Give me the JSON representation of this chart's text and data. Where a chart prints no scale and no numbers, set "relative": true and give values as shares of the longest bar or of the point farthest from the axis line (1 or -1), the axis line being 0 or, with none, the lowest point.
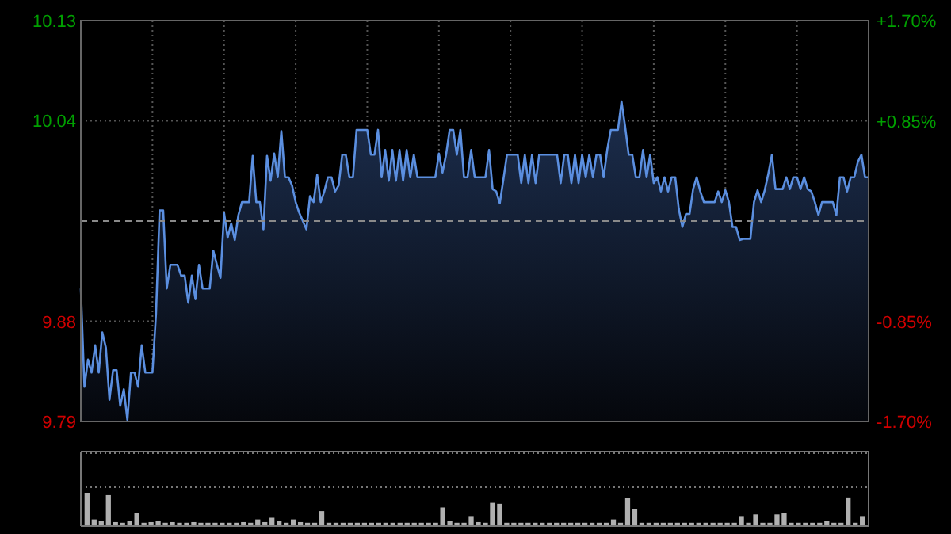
{
  "chart_data": [
    {
      "type": "area",
      "categories": [
        null,
        null,
        null,
        null,
        null,
        null,
        null,
        null,
        null,
        null,
        null,
        null,
        null,
        null,
        null,
        null,
        null,
        null,
        null,
        null,
        null,
        null,
        null,
        null,
        null,
        null,
        null,
        null,
        null,
        null,
        null,
        null,
        null,
        null,
        null,
        null,
        null,
        null,
        null,
        null,
        null,
        null,
        null,
        null,
        null,
        null,
        null,
        null,
        null,
        null,
        null,
        null,
        null,
        null,
        null,
        null,
        null,
        null,
        null,
        null,
        null,
        null,
        null,
        null,
        null,
        null,
        null,
        null,
        null,
        null,
        null,
        null,
        null,
        null,
        null,
        null,
        null,
        null,
        null,
        null,
        null,
        null,
        null,
        null,
        null,
        null,
        null,
        null,
        null,
        null,
        null,
        null,
        null,
        null,
        null,
        null,
        null,
        null,
        null,
        null,
        null,
        null,
        null,
        null,
        null,
        null,
        null,
        null,
        null,
        null,
        null,
        null,
        null,
        null,
        null,
        null,
        null,
        null,
        null,
        null,
        null,
        null,
        null,
        null,
        null,
        null,
        null,
        null,
        null,
        null,
        null,
        null,
        null,
        null,
        null,
        null,
        null,
        null,
        null,
        null,
        null,
        null,
        null,
        null,
        null,
        null,
        null,
        null,
        null,
        null,
        null,
        null,
        null,
        null,
        null,
        null,
        null,
        null,
        null,
        null,
        null,
        null,
        null,
        null,
        null,
        null,
        null,
        null,
        null,
        null,
        null,
        null,
        null,
        null,
        null,
        null,
        null,
        null,
        null,
        null,
        null,
        null,
        null,
        null,
        null,
        null,
        null,
        null,
        null,
        null,
        null,
        null,
        null,
        null,
        null,
        null,
        null,
        null,
        null,
        null,
        null,
        null,
        null,
        null,
        null,
        null,
        null,
        null,
        null,
        null,
        null,
        null,
        null,
        null,
        null,
        null,
        null,
        null,
        null,
        null,
        null
      ],
      "series": [
        {
          "color": "#5b8fe0",
          "values": [
            9.903,
            9.82,
            9.843,
            9.832,
            9.855,
            9.832,
            9.866,
            9.853,
            9.809,
            9.834,
            9.834,
            9.804,
            9.818,
            9.792,
            9.832,
            9.832,
            9.82,
            9.855,
            9.832,
            9.832,
            9.832,
            9.882,
            9.969,
            9.969,
            9.903,
            9.923,
            9.923,
            9.923,
            9.914,
            9.914,
            9.891,
            9.914,
            9.894,
            9.923,
            9.903,
            9.903,
            9.903,
            9.935,
            9.923,
            9.912,
            9.967,
            9.946,
            9.958,
            9.944,
            9.965,
            9.976,
            9.976,
            9.976,
            10.015,
            9.976,
            9.976,
            9.953,
            10.015,
            9.994,
            10.017,
            9.997,
            10.036,
            9.997,
            9.997,
            9.99,
            9.976,
            9.967,
            9.96,
            9.953,
            9.981,
            9.976,
            9.999,
            9.976,
            9.985,
            9.997,
            9.997,
            9.985,
            9.99,
            10.016,
            10.016,
            9.997,
            9.997,
            10.037,
            10.037,
            10.037,
            10.037,
            10.016,
            10.016,
            10.037,
            9.997,
            10.02,
            9.994,
            10.02,
            9.994,
            10.02,
            9.994,
            10.02,
            9.997,
            10.016,
            9.997,
            9.997,
            9.997,
            9.997,
            9.997,
            9.997,
            10.017,
            10.001,
            10.016,
            10.037,
            10.037,
            10.016,
            10.037,
            9.997,
            9.997,
            10.02,
            9.997,
            9.997,
            9.997,
            9.997,
            10.02,
            9.987,
            9.985,
            9.975,
            9.995,
            10.016,
            10.016,
            10.016,
            10.016,
            9.992,
            10.016,
            9.992,
            10.016,
            9.992,
            10.016,
            10.016,
            10.016,
            10.016,
            10.016,
            10.016,
            9.992,
            10.016,
            10.016,
            9.992,
            10.016,
            9.992,
            10.016,
            9.997,
            10.016,
            9.997,
            10.016,
            10.016,
            9.997,
            10.02,
            10.037,
            10.037,
            10.037,
            10.061,
            10.04,
            10.016,
            10.016,
            9.997,
            9.997,
            10.02,
            9.997,
            10.016,
            9.992,
            9.997,
            9.985,
            9.997,
            9.985,
            9.997,
            9.997,
            9.97,
            9.955,
            9.966,
            9.966,
            9.987,
            9.997,
            9.985,
            9.976,
            9.976,
            9.976,
            9.976,
            9.985,
            9.976,
            9.986,
            9.976,
            9.955,
            9.955,
            9.944,
            9.945,
            9.945,
            9.945,
            9.976,
            9.986,
            9.976,
            9.986,
            10.0,
            10.016,
            9.987,
            9.987,
            9.987,
            9.997,
            9.987,
            9.997,
            9.997,
            9.987,
            9.997,
            9.987,
            9.985,
            9.976,
            9.965,
            9.976,
            9.976,
            9.976,
            9.976,
            9.965,
            9.997,
            9.997,
            9.985,
            9.997,
            9.997,
            10.01,
            10.016,
            9.997,
            9.997
          ]
        }
      ],
      "ylim": [
        9.7907,
        10.1293
      ],
      "yticks": [
        {
          "value": 10.1293,
          "label": "10.13"
        },
        {
          "value": 10.0447,
          "label": "10.04"
        },
        {
          "value": 9.8753,
          "label": "9.88"
        },
        {
          "value": 9.7907,
          "label": "9.79"
        }
      ],
      "y2lim": [
        -1.7,
        1.7
      ],
      "y2ticks": [
        {
          "value": 1.7,
          "label": "+1.70%"
        },
        {
          "value": 0.85,
          "label": "+0.85%"
        },
        {
          "value": -0.85,
          "label": "-0.85%"
        },
        {
          "value": -1.7,
          "label": "-1.70%"
        }
      ],
      "ref_lines": [
        {
          "axis": "y",
          "value": 9.96,
          "line_style": "dashed",
          "color": "#8a8a8a"
        }
      ],
      "grid": true
    },
    {
      "type": "bar",
      "relative": true,
      "color": "#b0b0b0",
      "grid": true,
      "categories": [
        null,
        null,
        null,
        null,
        null,
        null,
        null,
        null,
        null,
        null,
        null,
        null,
        null,
        null,
        null,
        null,
        null,
        null,
        null,
        null,
        null,
        null,
        null,
        null,
        null,
        null,
        null,
        null,
        null,
        null,
        null,
        null,
        null,
        null,
        null,
        null,
        null,
        null,
        null,
        null,
        null,
        null,
        null,
        null,
        null,
        null,
        null,
        null,
        null,
        null,
        null,
        null,
        null,
        null,
        null,
        null,
        null,
        null,
        null,
        null,
        null,
        null,
        null,
        null,
        null,
        null,
        null,
        null,
        null,
        null,
        null,
        null,
        null,
        null,
        null,
        null,
        null,
        null,
        null,
        null,
        null,
        null,
        null,
        null,
        null,
        null,
        null,
        null,
        null,
        null,
        null,
        null,
        null,
        null,
        null,
        null,
        null,
        null,
        null,
        null,
        null,
        null,
        null,
        null,
        null,
        null,
        null,
        null,
        null,
        null
      ],
      "values": [
        1,
        0.2,
        0.15,
        0.93,
        0.12,
        0.1,
        0.15,
        0.4,
        0.1,
        0.12,
        0.15,
        0.1,
        0.12,
        0.1,
        0.1,
        0.12,
        0.1,
        0.1,
        0.1,
        0.1,
        0.1,
        0.1,
        0.12,
        0.1,
        0.2,
        0.12,
        0.25,
        0.15,
        0.1,
        0.2,
        0.12,
        0.1,
        0.1,
        0.45,
        0.1,
        0.1,
        0.1,
        0.1,
        0.1,
        0.1,
        0.1,
        0.1,
        0.1,
        0.1,
        0.1,
        0.1,
        0.1,
        0.1,
        0.1,
        0.1,
        0.56,
        0.15,
        0.1,
        0.1,
        0.3,
        0.12,
        0.1,
        0.7,
        0.67,
        0.1,
        0.1,
        0.1,
        0.1,
        0.1,
        0.1,
        0.1,
        0.1,
        0.1,
        0.1,
        0.1,
        0.1,
        0.1,
        0.1,
        0.1,
        0.2,
        0.1,
        0.84,
        0.5,
        0.1,
        0.1,
        0.1,
        0.1,
        0.1,
        0.1,
        0.1,
        0.1,
        0.1,
        0.1,
        0.1,
        0.1,
        0.1,
        0.1,
        0.3,
        0.1,
        0.35,
        0.1,
        0.1,
        0.35,
        0.4,
        0.1,
        0.1,
        0.1,
        0.1,
        0.1,
        0.15,
        0.1,
        0.1,
        0.86,
        0.1,
        0.3
      ]
    }
  ]
}
